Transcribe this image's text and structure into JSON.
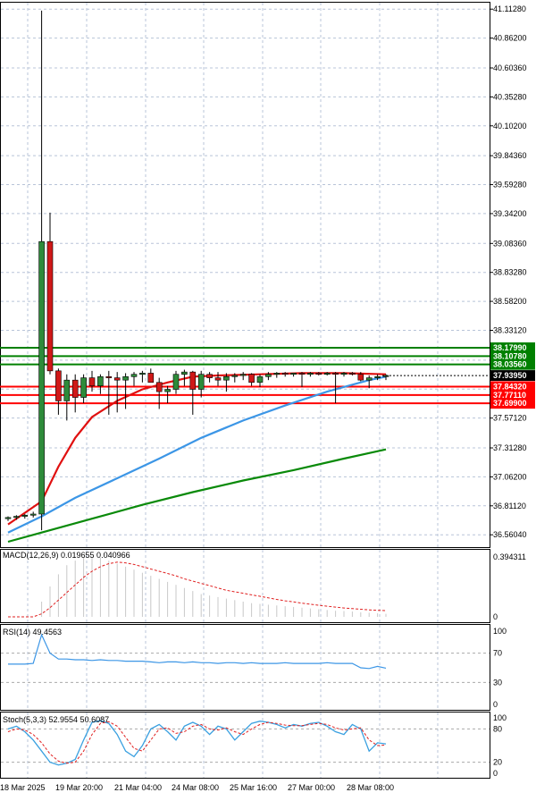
{
  "chart_data": {
    "type": "candlestick",
    "price_axis": {
      "ticks": [
        "41.11280",
        "40.86200",
        "40.60360",
        "40.35280",
        "40.10200",
        "39.84360",
        "39.59280",
        "39.34200",
        "39.08360",
        "38.83280",
        "38.58200",
        "38.33120",
        "38.07280",
        "37.82200",
        "37.57120",
        "37.31280",
        "37.06200",
        "36.81120",
        "36.56040"
      ],
      "range": [
        36.5,
        41.13
      ]
    },
    "time_axis": {
      "labels": [
        "18 Mar 2025",
        "19 Mar 20:00",
        "21 Mar 04:00",
        "24 Mar 08:00",
        "25 Mar 16:00",
        "27 Mar 00:00",
        "28 Mar 08:00"
      ]
    },
    "candles": [
      [
        36.7,
        36.72,
        36.68,
        36.71
      ],
      [
        36.71,
        36.73,
        36.69,
        36.72
      ],
      [
        36.72,
        36.74,
        36.7,
        36.73
      ],
      [
        36.73,
        36.76,
        36.71,
        36.74
      ],
      [
        36.74,
        41.1,
        36.6,
        39.1
      ],
      [
        39.1,
        39.35,
        37.95,
        37.98
      ],
      [
        37.98,
        38.0,
        37.6,
        37.72
      ],
      [
        37.72,
        37.95,
        37.55,
        37.9
      ],
      [
        37.9,
        37.95,
        37.62,
        37.75
      ],
      [
        37.75,
        37.95,
        37.7,
        37.92
      ],
      [
        37.92,
        37.98,
        37.8,
        37.85
      ],
      [
        37.85,
        37.95,
        37.78,
        37.93
      ],
      [
        37.93,
        37.98,
        37.6,
        37.92
      ],
      [
        37.92,
        37.97,
        37.62,
        37.9
      ],
      [
        37.9,
        37.96,
        37.65,
        37.93
      ],
      [
        37.93,
        37.97,
        37.85,
        37.95
      ],
      [
        37.95,
        37.98,
        37.88,
        37.96
      ],
      [
        37.96,
        38.0,
        37.9,
        37.88
      ],
      [
        37.88,
        37.92,
        37.65,
        37.8
      ],
      [
        37.8,
        37.85,
        37.7,
        37.82
      ],
      [
        37.82,
        37.98,
        37.78,
        37.95
      ],
      [
        37.95,
        37.99,
        37.85,
        37.97
      ],
      [
        37.97,
        37.98,
        37.6,
        37.82
      ],
      [
        37.82,
        37.98,
        37.75,
        37.95
      ],
      [
        37.95,
        37.97,
        37.88,
        37.92
      ],
      [
        37.92,
        37.97,
        37.85,
        37.9
      ],
      [
        37.9,
        37.96,
        37.8,
        37.93
      ],
      [
        37.93,
        37.96,
        37.88,
        37.94
      ],
      [
        37.94,
        37.97,
        37.9,
        37.95
      ],
      [
        37.95,
        37.96,
        37.85,
        37.88
      ],
      [
        37.88,
        37.95,
        37.84,
        37.93
      ],
      [
        37.93,
        37.97,
        37.9,
        37.95
      ],
      [
        37.95,
        37.97,
        37.92,
        37.96
      ],
      [
        37.96,
        37.97,
        37.93,
        37.95
      ],
      [
        37.95,
        37.96,
        37.93,
        37.96
      ],
      [
        37.96,
        37.97,
        37.84,
        37.95
      ],
      [
        37.95,
        37.97,
        37.93,
        37.96
      ],
      [
        37.96,
        37.97,
        37.94,
        37.95
      ],
      [
        37.95,
        37.97,
        37.94,
        37.96
      ],
      [
        37.96,
        37.97,
        37.7,
        37.95
      ],
      [
        37.95,
        37.97,
        37.93,
        37.96
      ],
      [
        37.96,
        37.97,
        37.94,
        37.95
      ],
      [
        37.95,
        37.97,
        37.89,
        37.9
      ],
      [
        37.9,
        37.94,
        37.83,
        37.92
      ],
      [
        37.92,
        37.95,
        37.9,
        37.93
      ],
      [
        37.93,
        37.95,
        37.9,
        37.94
      ]
    ],
    "h_lines": [
      {
        "value": 38.1799,
        "color": "#008000",
        "label": "38.17990"
      },
      {
        "value": 38.1078,
        "color": "#008000",
        "label": "38.10780"
      },
      {
        "value": 38.0356,
        "color": "#008000",
        "label": "38.03560"
      },
      {
        "value": 37.8432,
        "color": "#ff0000",
        "label": "37.84320"
      },
      {
        "value": 37.7711,
        "color": "#ff0000",
        "label": "37.77110"
      },
      {
        "value": 37.699,
        "color": "#ff0000",
        "label": "37.69900"
      }
    ],
    "current_price": {
      "value": 37.9395,
      "label": "37.93950"
    },
    "ma_red": [
      [
        0,
        36.65
      ],
      [
        4,
        36.85
      ],
      [
        6,
        37.15
      ],
      [
        8,
        37.4
      ],
      [
        10,
        37.58
      ],
      [
        13,
        37.72
      ],
      [
        16,
        37.82
      ],
      [
        19,
        37.88
      ],
      [
        22,
        37.93
      ],
      [
        25,
        37.94
      ],
      [
        30,
        37.95
      ],
      [
        35,
        37.96
      ],
      [
        40,
        37.96
      ],
      [
        45,
        37.95
      ]
    ],
    "ma_blue": [
      [
        0,
        36.58
      ],
      [
        4,
        36.72
      ],
      [
        8,
        36.88
      ],
      [
        13,
        37.05
      ],
      [
        18,
        37.22
      ],
      [
        23,
        37.4
      ],
      [
        28,
        37.55
      ],
      [
        33,
        37.68
      ],
      [
        38,
        37.8
      ],
      [
        43,
        37.9
      ],
      [
        45,
        37.93
      ]
    ],
    "ma_green": [
      [
        0,
        36.5
      ],
      [
        4,
        36.58
      ],
      [
        10,
        36.7
      ],
      [
        16,
        36.82
      ],
      [
        22,
        36.93
      ],
      [
        28,
        37.03
      ],
      [
        34,
        37.12
      ],
      [
        40,
        37.22
      ],
      [
        45,
        37.3
      ]
    ],
    "macd": {
      "label": "MACD(12,26,9) 0.019655 0.040966",
      "axis_ticks": [
        "0.394311",
        "0"
      ],
      "range": [
        0,
        0.4
      ],
      "histogram": [
        0,
        0,
        0,
        0,
        0.1,
        0.2,
        0.28,
        0.34,
        0.37,
        0.39,
        0.395,
        0.39,
        0.37,
        0.35,
        0.33,
        0.31,
        0.29,
        0.27,
        0.25,
        0.23,
        0.21,
        0.19,
        0.17,
        0.15,
        0.14,
        0.13,
        0.12,
        0.11,
        0.1,
        0.09,
        0.085,
        0.08,
        0.075,
        0.07,
        0.065,
        0.06,
        0.055,
        0.05,
        0.045,
        0.04,
        0.038,
        0.035,
        0.03,
        0.027,
        0.023,
        0.02
      ],
      "signal": [
        0,
        0,
        0,
        0,
        0.02,
        0.06,
        0.11,
        0.16,
        0.21,
        0.26,
        0.3,
        0.33,
        0.35,
        0.36,
        0.355,
        0.345,
        0.33,
        0.315,
        0.3,
        0.285,
        0.27,
        0.25,
        0.235,
        0.22,
        0.205,
        0.19,
        0.175,
        0.165,
        0.155,
        0.145,
        0.135,
        0.125,
        0.115,
        0.105,
        0.098,
        0.09,
        0.083,
        0.076,
        0.07,
        0.064,
        0.058,
        0.054,
        0.05,
        0.046,
        0.043,
        0.041
      ]
    },
    "rsi": {
      "label": "RSI(14) 49.4563",
      "axis_ticks": [
        "100",
        "70",
        "30",
        "0"
      ],
      "range": [
        0,
        100
      ],
      "values": [
        55,
        55,
        55,
        56,
        95,
        70,
        62,
        62,
        61,
        61,
        60,
        61,
        60,
        60,
        59,
        59,
        59,
        58,
        57,
        58,
        58,
        57,
        58,
        57,
        57,
        56,
        57,
        57,
        56,
        57,
        56,
        56,
        56,
        57,
        56,
        56,
        56,
        56,
        57,
        56,
        56,
        56,
        50,
        49,
        52,
        49.5
      ]
    },
    "stoch": {
      "label": "Stoch(5,3,3) 52.9554 50.6087",
      "axis_ticks": [
        "100",
        "80",
        "20",
        "0"
      ],
      "range": [
        0,
        100
      ],
      "k": [
        80,
        85,
        75,
        60,
        40,
        20,
        15,
        18,
        25,
        60,
        92,
        95,
        90,
        70,
        40,
        30,
        50,
        80,
        88,
        75,
        60,
        85,
        92,
        85,
        70,
        85,
        80,
        60,
        75,
        90,
        94,
        92,
        88,
        82,
        88,
        85,
        90,
        92,
        85,
        75,
        70,
        88,
        80,
        40,
        55,
        53
      ],
      "d": [
        75,
        80,
        78,
        70,
        55,
        35,
        22,
        18,
        20,
        40,
        70,
        90,
        93,
        85,
        65,
        45,
        40,
        60,
        80,
        82,
        72,
        75,
        85,
        88,
        80,
        78,
        82,
        75,
        70,
        80,
        88,
        92,
        90,
        87,
        86,
        86,
        88,
        90,
        88,
        82,
        78,
        80,
        82,
        60,
        50,
        51
      ]
    }
  }
}
